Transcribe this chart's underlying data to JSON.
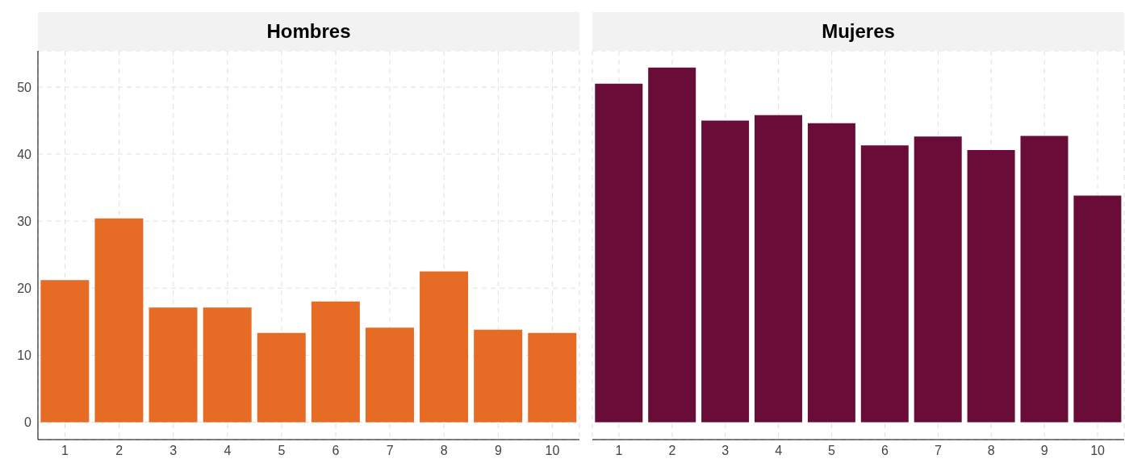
{
  "chart_data": [
    {
      "type": "bar",
      "title": "Hombres",
      "categories": [
        "1",
        "2",
        "3",
        "4",
        "5",
        "6",
        "7",
        "8",
        "9",
        "10"
      ],
      "values": [
        21.2,
        30.4,
        17.1,
        17.1,
        13.3,
        18.0,
        14.1,
        22.5,
        13.8,
        13.3
      ],
      "color": "#e66b25",
      "ylim": [
        -2.6,
        55.4
      ],
      "yticks": [
        0,
        10,
        20,
        30,
        40,
        50
      ],
      "grid": true
    },
    {
      "type": "bar",
      "title": "Mujeres",
      "categories": [
        "1",
        "2",
        "3",
        "4",
        "5",
        "6",
        "7",
        "8",
        "9",
        "10"
      ],
      "values": [
        50.5,
        52.9,
        45.0,
        45.8,
        44.6,
        41.3,
        42.6,
        40.6,
        42.7,
        33.8
      ],
      "color": "#690c37",
      "ylim": [
        -2.6,
        55.4
      ],
      "yticks": [
        0,
        10,
        20,
        30,
        40,
        50
      ],
      "grid": true,
      "tick_labels": "x"
    }
  ]
}
